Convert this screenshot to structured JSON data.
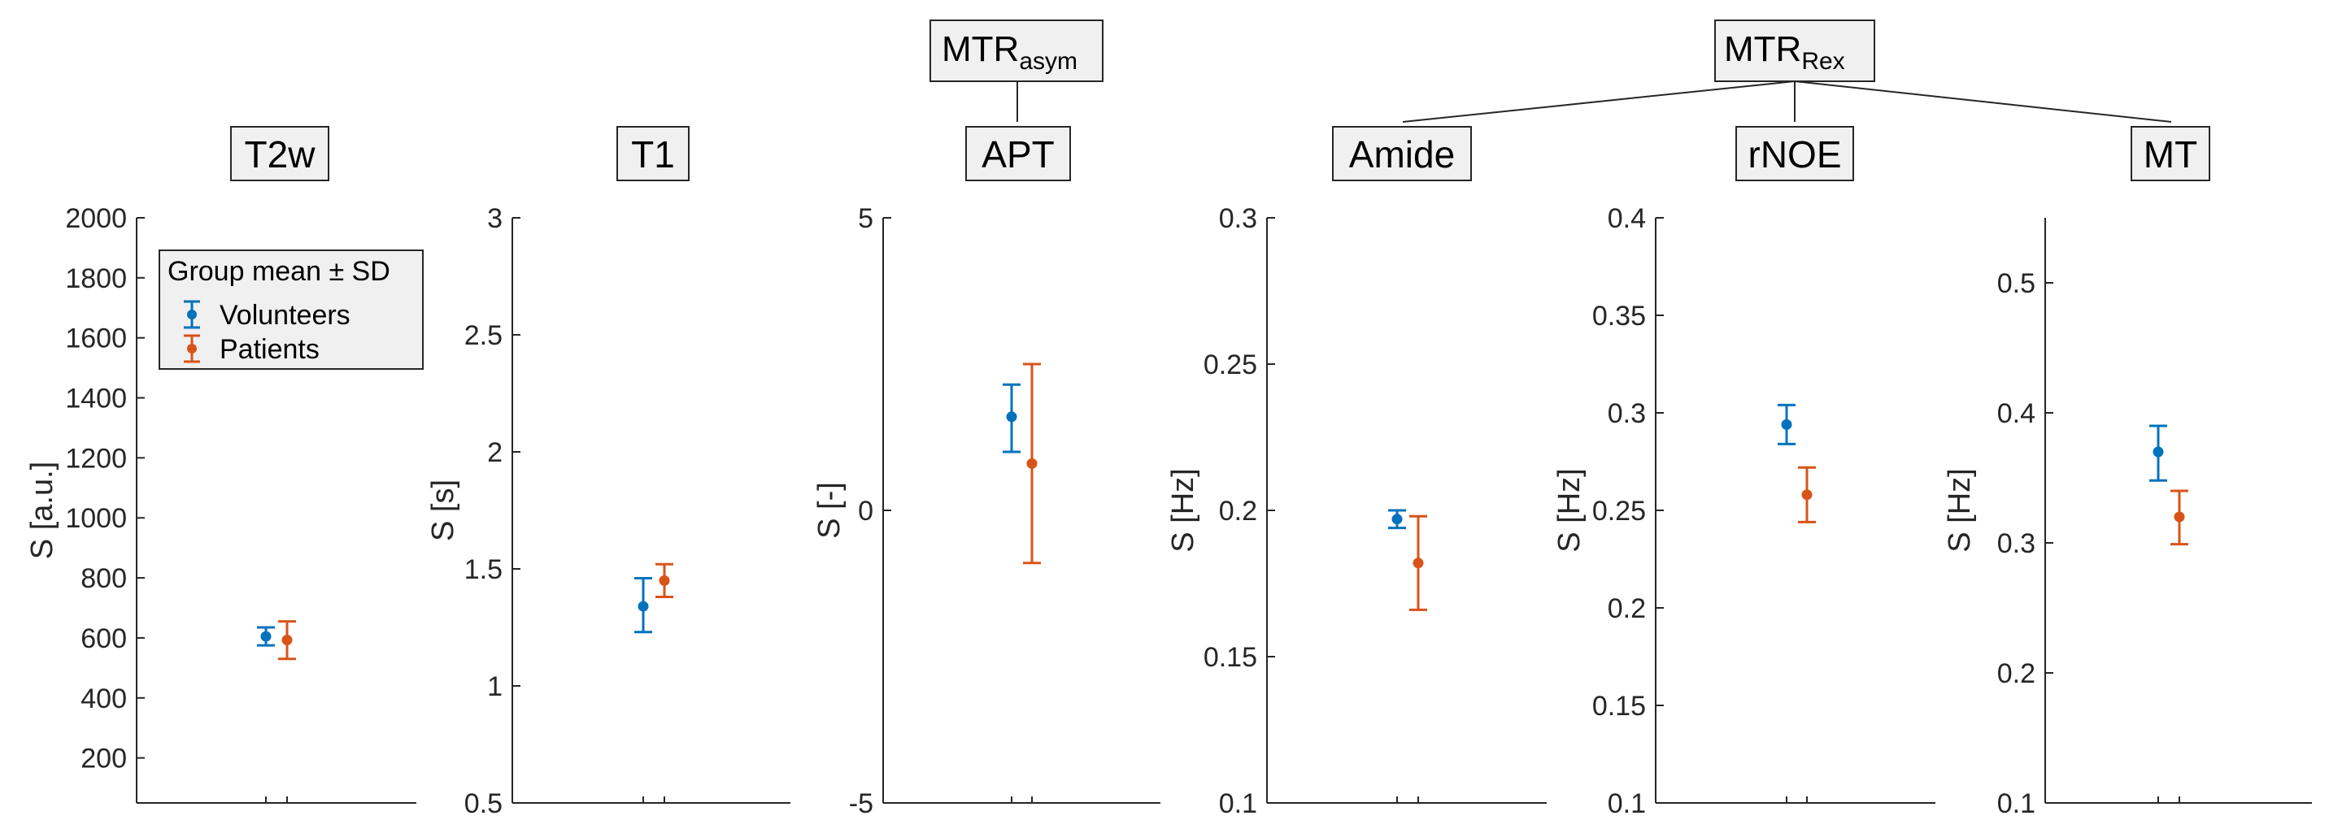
{
  "colors": {
    "volunteers": "#0072BD",
    "patients": "#D95319",
    "box_fill": "#F0F0F0",
    "axis": "#262626"
  },
  "group_labels": {
    "mtr_asym_main": "MTR",
    "mtr_asym_sub": "asym",
    "mtr_rex_main": "MTR",
    "mtr_rex_sub": "Rex"
  },
  "legend": {
    "title": "Group mean ± SD",
    "volunteers": "Volunteers",
    "patients": "Patients"
  },
  "chart_data": [
    {
      "type": "errorbar",
      "title": "T2w",
      "ylabel": "S [a.u.]",
      "ylim": [
        50,
        2000
      ],
      "yticks": [
        "200",
        "400",
        "600",
        "800",
        "1000",
        "1200",
        "1400",
        "1600",
        "1800",
        "2000"
      ],
      "series": [
        {
          "name": "Volunteers",
          "mean": 605,
          "lower": 575,
          "upper": 635
        },
        {
          "name": "Patients",
          "mean": 593,
          "lower": 530,
          "upper": 655
        }
      ]
    },
    {
      "type": "errorbar",
      "title": "T1",
      "ylabel": "S [s]",
      "ylim": [
        0.5,
        3
      ],
      "yticks": [
        "0.5",
        "1",
        "1.5",
        "2",
        "2.5",
        "3"
      ],
      "series": [
        {
          "name": "Volunteers",
          "mean": 1.34,
          "lower": 1.23,
          "upper": 1.46
        },
        {
          "name": "Patients",
          "mean": 1.45,
          "lower": 1.38,
          "upper": 1.52
        }
      ]
    },
    {
      "type": "errorbar",
      "title": "APT",
      "ylabel": "S [-]",
      "ylim": [
        -5,
        5
      ],
      "yticks": [
        "-5",
        "0",
        "5"
      ],
      "series": [
        {
          "name": "Volunteers",
          "mean": 1.6,
          "lower": 1.0,
          "upper": 2.15
        },
        {
          "name": "Patients",
          "mean": 0.8,
          "lower": -0.9,
          "upper": 2.5
        }
      ]
    },
    {
      "type": "errorbar",
      "title": "Amide",
      "ylabel": "S [Hz]",
      "ylim": [
        0.1,
        0.3
      ],
      "yticks": [
        "0.1",
        "0.15",
        "0.2",
        "0.25",
        "0.3"
      ],
      "series": [
        {
          "name": "Volunteers",
          "mean": 0.197,
          "lower": 0.194,
          "upper": 0.2
        },
        {
          "name": "Patients",
          "mean": 0.182,
          "lower": 0.166,
          "upper": 0.198
        }
      ]
    },
    {
      "type": "errorbar",
      "title": "rNOE",
      "ylabel": "S [Hz]",
      "ylim": [
        0.1,
        0.4
      ],
      "yticks": [
        "0.1",
        "0.15",
        "0.2",
        "0.25",
        "0.3",
        "0.35",
        "0.4"
      ],
      "series": [
        {
          "name": "Volunteers",
          "mean": 0.294,
          "lower": 0.284,
          "upper": 0.304
        },
        {
          "name": "Patients",
          "mean": 0.258,
          "lower": 0.244,
          "upper": 0.272
        }
      ]
    },
    {
      "type": "errorbar",
      "title": "MT",
      "ylabel": "S [Hz]",
      "ylim": [
        0.1,
        0.55
      ],
      "yticks": [
        "0.1",
        "0.2",
        "0.3",
        "0.4",
        "0.5"
      ],
      "series": [
        {
          "name": "Volunteers",
          "mean": 0.37,
          "lower": 0.348,
          "upper": 0.39
        },
        {
          "name": "Patients",
          "mean": 0.32,
          "lower": 0.299,
          "upper": 0.34
        }
      ]
    }
  ]
}
